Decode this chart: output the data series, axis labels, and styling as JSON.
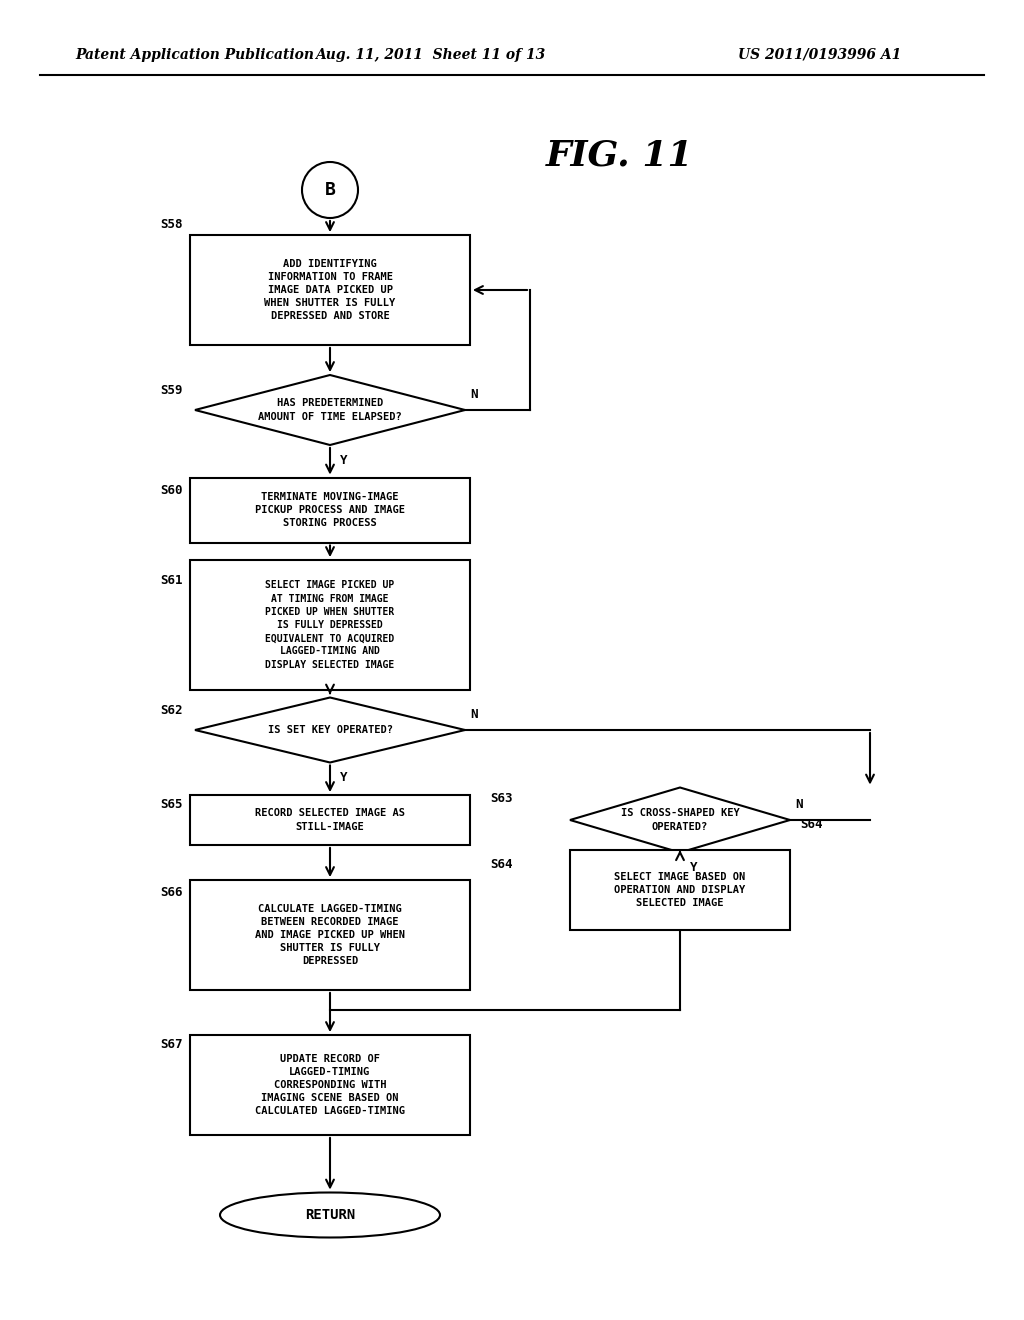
{
  "bg_color": "#ffffff",
  "header_left": "Patent Application Publication",
  "header_mid": "Aug. 11, 2011  Sheet 11 of 13",
  "header_right": "US 2011/0193996 A1",
  "title": "FIG. 11",
  "S58_text": "ADD IDENTIFYING\nINFORMATION TO FRAME\nIMAGE DATA PICKED UP\nWHEN SHUTTER IS FULLY\nDEPRESSED AND STORE",
  "S59_text": "HAS PREDETERMINED\nAMOUNT OF TIME ELAPSED?",
  "S60_text": "TERMINATE MOVING-IMAGE\nPICKUP PROCESS AND IMAGE\nSTORING PROCESS",
  "S61_text": "SELECT IMAGE PICKED UP\nAT TIMING FROM IMAGE\nPICKED UP WHEN SHUTTER\nIS FULLY DEPRESSED\nEQUIVALENT TO ACQUIRED\nLAGGED-TIMING AND\nDISPLAY SELECTED IMAGE",
  "S62_text": "IS SET KEY OPERATED?",
  "S65_text": "RECORD SELECTED IMAGE AS\nSTILL-IMAGE",
  "S63_text": "IS CROSS-SHAPED KEY\nOPERATED?",
  "S66_text": "CALCULATE LAGGED-TIMING\nBETWEEN RECORDED IMAGE\nAND IMAGE PICKED UP WHEN\nSHUTTER IS FULLY\nDEPRESSED",
  "S64_text": "SELECT IMAGE BASED ON\nOPERATION AND DISPLAY\nSELECTED IMAGE",
  "S67_text": "UPDATE RECORD OF\nLAGGED-TIMING\nCORRESPONDING WITH\nIMAGING SCENE BASED ON\nCALCULATED LAGGED-TIMING",
  "RETURN_text": "RETURN"
}
